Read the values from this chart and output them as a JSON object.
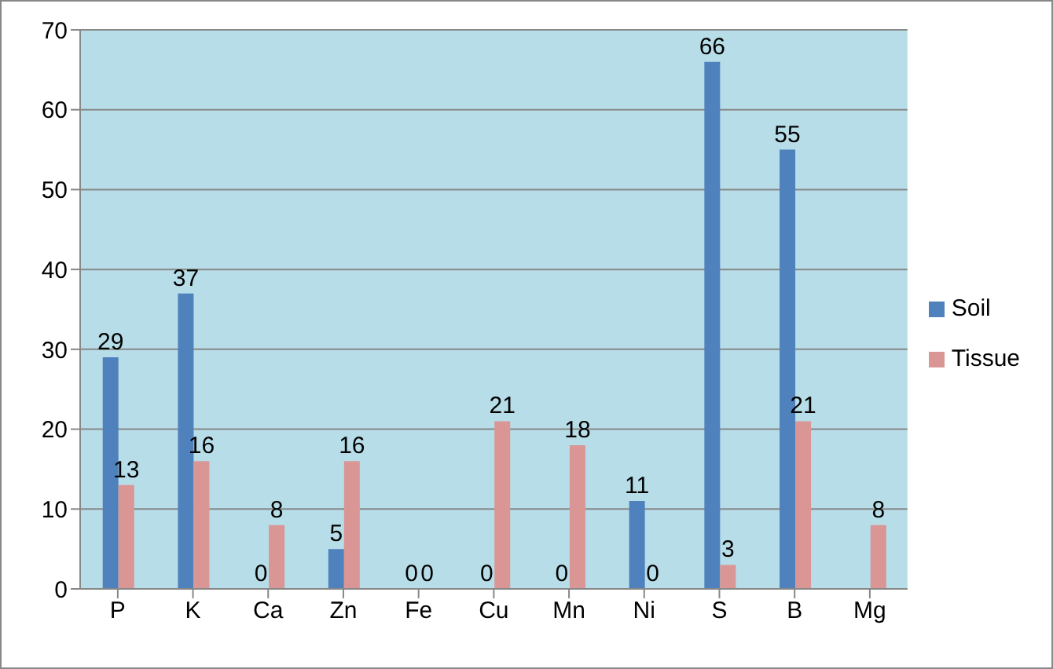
{
  "chart_data": {
    "type": "bar",
    "categories": [
      "P",
      "K",
      "Ca",
      "Zn",
      "Fe",
      "Cu",
      "Mn",
      "Ni",
      "S",
      "B",
      "Mg"
    ],
    "series": [
      {
        "name": "Soil",
        "color": "#4f81bd",
        "values": [
          29,
          37,
          0,
          5,
          0,
          0,
          0,
          11,
          66,
          55,
          null
        ],
        "value_labels": [
          "29",
          "37",
          "0",
          "5",
          "0",
          "0",
          "0",
          "11",
          "66",
          "55",
          null
        ]
      },
      {
        "name": "Tissue",
        "color": "#d99694",
        "values": [
          13,
          16,
          8,
          16,
          0,
          21,
          18,
          0,
          3,
          21,
          8
        ],
        "value_labels": [
          "13",
          "16",
          "8",
          "16",
          "0",
          "21",
          "18",
          "0",
          "3",
          "21",
          "8"
        ]
      }
    ],
    "ylim": [
      0,
      70
    ],
    "yticks": [
      0,
      10,
      20,
      30,
      40,
      50,
      60,
      70
    ],
    "grid": "y",
    "legend": "right"
  }
}
